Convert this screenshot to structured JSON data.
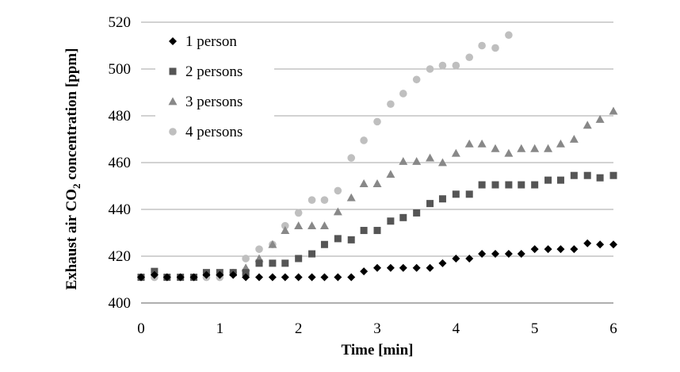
{
  "chart_data": {
    "type": "scatter",
    "xlabel": "Time [min]",
    "ylabel": "Exhaust air CO2 concentration [ppm]",
    "ylabel_parts": {
      "before": "Exhaust air CO",
      "sub": "2",
      "after": " concentration [ppm]"
    },
    "xlim": [
      0,
      6
    ],
    "ylim": [
      400,
      520
    ],
    "xticks": [
      "0",
      "1",
      "2",
      "3",
      "4",
      "5",
      "6"
    ],
    "yticks": [
      "400",
      "420",
      "440",
      "460",
      "480",
      "500",
      "520"
    ],
    "grid": "horizontal",
    "legend_position": "top-left",
    "series": [
      {
        "name": "1 person",
        "marker": "diamond",
        "color": "#000000",
        "points": [
          [
            0,
            411
          ],
          [
            0.17,
            412
          ],
          [
            0.33,
            411
          ],
          [
            0.5,
            411
          ],
          [
            0.67,
            411
          ],
          [
            0.83,
            412
          ],
          [
            1.0,
            412
          ],
          [
            1.17,
            412
          ],
          [
            1.33,
            411
          ],
          [
            1.5,
            411
          ],
          [
            1.67,
            411
          ],
          [
            1.83,
            411
          ],
          [
            2.0,
            411
          ],
          [
            2.17,
            411
          ],
          [
            2.33,
            411
          ],
          [
            2.5,
            411
          ],
          [
            2.67,
            411
          ],
          [
            2.83,
            413.5
          ],
          [
            3.0,
            415
          ],
          [
            3.17,
            415
          ],
          [
            3.33,
            415
          ],
          [
            3.5,
            415
          ],
          [
            3.67,
            415
          ],
          [
            3.83,
            417
          ],
          [
            4.0,
            419
          ],
          [
            4.17,
            419
          ],
          [
            4.33,
            421
          ],
          [
            4.5,
            421
          ],
          [
            4.67,
            421
          ],
          [
            4.83,
            421
          ],
          [
            5.0,
            423
          ],
          [
            5.17,
            423
          ],
          [
            5.33,
            423
          ],
          [
            5.5,
            423
          ],
          [
            5.67,
            425.5
          ],
          [
            5.83,
            425
          ],
          [
            6.0,
            425
          ]
        ]
      },
      {
        "name": "2 persons",
        "marker": "square",
        "color": "#555555",
        "points": [
          [
            0,
            411
          ],
          [
            0.17,
            413.5
          ],
          [
            0.33,
            411
          ],
          [
            0.5,
            411
          ],
          [
            0.67,
            411
          ],
          [
            0.83,
            413
          ],
          [
            1.0,
            413
          ],
          [
            1.17,
            413
          ],
          [
            1.33,
            413
          ],
          [
            1.5,
            417
          ],
          [
            1.67,
            417
          ],
          [
            1.83,
            417
          ],
          [
            2.0,
            419
          ],
          [
            2.17,
            421
          ],
          [
            2.33,
            425
          ],
          [
            2.5,
            427.5
          ],
          [
            2.67,
            427
          ],
          [
            2.83,
            431
          ],
          [
            3.0,
            431
          ],
          [
            3.17,
            435
          ],
          [
            3.33,
            436.5
          ],
          [
            3.5,
            438.5
          ],
          [
            3.67,
            442.5
          ],
          [
            3.83,
            444.5
          ],
          [
            4.0,
            446.5
          ],
          [
            4.17,
            446.5
          ],
          [
            4.33,
            450.5
          ],
          [
            4.5,
            450.5
          ],
          [
            4.67,
            450.5
          ],
          [
            4.83,
            450.5
          ],
          [
            5.0,
            450.5
          ],
          [
            5.17,
            452.5
          ],
          [
            5.33,
            452.5
          ],
          [
            5.5,
            454.5
          ],
          [
            5.67,
            454.5
          ],
          [
            5.83,
            453.5
          ],
          [
            6.0,
            454.5
          ]
        ]
      },
      {
        "name": "3 persons",
        "marker": "triangle",
        "color": "#888888",
        "points": [
          [
            1.33,
            415
          ],
          [
            1.5,
            419
          ],
          [
            1.67,
            425
          ],
          [
            1.83,
            431
          ],
          [
            2.0,
            433
          ],
          [
            2.17,
            433
          ],
          [
            2.33,
            433
          ],
          [
            2.5,
            439
          ],
          [
            2.67,
            445
          ],
          [
            2.83,
            451
          ],
          [
            3.0,
            451
          ],
          [
            3.17,
            455
          ],
          [
            3.33,
            460.5
          ],
          [
            3.5,
            460.5
          ],
          [
            3.67,
            462
          ],
          [
            3.83,
            460
          ],
          [
            4.0,
            464
          ],
          [
            4.17,
            468
          ],
          [
            4.33,
            468
          ],
          [
            4.5,
            466
          ],
          [
            4.67,
            464
          ],
          [
            4.83,
            466
          ],
          [
            5.0,
            466
          ],
          [
            5.17,
            466
          ],
          [
            5.33,
            468
          ],
          [
            5.5,
            470
          ],
          [
            5.67,
            476
          ],
          [
            5.83,
            478.5
          ],
          [
            6.0,
            482
          ]
        ]
      },
      {
        "name": "4 persons",
        "marker": "circle",
        "color": "#bfbfbf",
        "points": [
          [
            0,
            411
          ],
          [
            0.17,
            411
          ],
          [
            0.33,
            411
          ],
          [
            0.5,
            411
          ],
          [
            0.67,
            411
          ],
          [
            0.83,
            411
          ],
          [
            1.0,
            411
          ],
          [
            1.17,
            413
          ],
          [
            1.33,
            419
          ],
          [
            1.5,
            423
          ],
          [
            1.67,
            425
          ],
          [
            1.83,
            433
          ],
          [
            2.0,
            438.5
          ],
          [
            2.17,
            444
          ],
          [
            2.33,
            444
          ],
          [
            2.5,
            448
          ],
          [
            2.67,
            462
          ],
          [
            2.83,
            469.5
          ],
          [
            3.0,
            477.5
          ],
          [
            3.17,
            485
          ],
          [
            3.33,
            489.5
          ],
          [
            3.5,
            495.5
          ],
          [
            3.67,
            500
          ],
          [
            3.83,
            501.5
          ],
          [
            4.0,
            501.5
          ],
          [
            4.17,
            505
          ],
          [
            4.33,
            510
          ],
          [
            4.5,
            509
          ],
          [
            4.67,
            514.5
          ]
        ]
      }
    ]
  }
}
